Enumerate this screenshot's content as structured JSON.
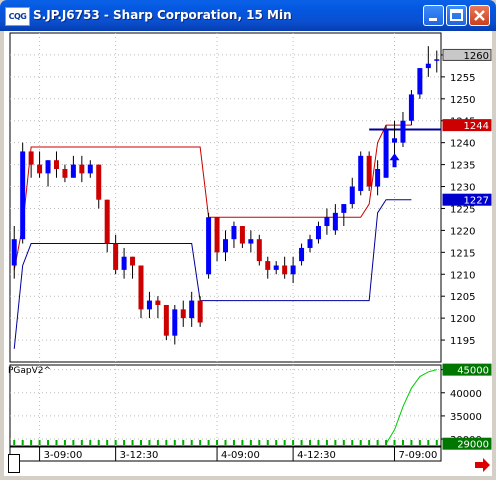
{
  "window": {
    "logo_text": "CQG",
    "title": "S.JP.J6753 - Sharp Corporation, 15 Min"
  },
  "icons": {
    "logo": "cqg-logo-icon",
    "minimize": "minimize-icon",
    "maximize": "maximize-icon",
    "close": "close-icon",
    "scroll_right": "red-right-arrow-icon",
    "buy_signal": "blue-up-arrow-icon"
  },
  "colors": {
    "up_candle": "#0000ff",
    "down_candle": "#cc0000",
    "upper_band": "#cc0000",
    "lower_band": "#000099",
    "indicator_line": "#00cc00",
    "grid": "#bbbbbb"
  },
  "indicator": {
    "label": "PGapV2^"
  },
  "chart_data": [
    {
      "type": "candlestick",
      "title": "S.JP.J6753 - Sharp Corporation, 15 Min",
      "ylim": [
        1190,
        1265
      ],
      "y_ticks": [
        1195,
        1200,
        1205,
        1210,
        1215,
        1220,
        1225,
        1230,
        1235,
        1240,
        1245,
        1250,
        1255,
        1260
      ],
      "x_tick_labels": [
        "3-09:00",
        "3-12:30",
        "4-09:00",
        "4-12:30",
        "7-09:00"
      ],
      "x_tick_bars": [
        3,
        12,
        24,
        33,
        45
      ],
      "price_markers": [
        {
          "value": "1260",
          "level": 1260,
          "style": "gray"
        },
        {
          "value": "1244",
          "level": 1244,
          "style": "red"
        },
        {
          "value": "1227",
          "level": 1227,
          "style": "blue"
        }
      ],
      "candles": [
        [
          1212,
          1221,
          1209,
          1218
        ],
        [
          1218,
          1240,
          1217,
          1238
        ],
        [
          1238,
          1238,
          1232,
          1235
        ],
        [
          1235,
          1238,
          1232,
          1233
        ],
        [
          1233,
          1236,
          1230,
          1236
        ],
        [
          1236,
          1238,
          1232,
          1234
        ],
        [
          1234,
          1235,
          1231,
          1232
        ],
        [
          1232,
          1237,
          1232,
          1235
        ],
        [
          1235,
          1237,
          1231,
          1233
        ],
        [
          1233,
          1236,
          1232,
          1235
        ],
        [
          1235,
          1235,
          1225,
          1227
        ],
        [
          1227,
          1227,
          1215,
          1217
        ],
        [
          1217,
          1219,
          1210,
          1211
        ],
        [
          1211,
          1216,
          1209,
          1214
        ],
        [
          1214,
          1214,
          1209,
          1212
        ],
        [
          1212,
          1212,
          1200,
          1202
        ],
        [
          1202,
          1206,
          1200,
          1204
        ],
        [
          1204,
          1205,
          1200,
          1203
        ],
        [
          1203,
          1203,
          1195,
          1196
        ],
        [
          1196,
          1203,
          1194,
          1202
        ],
        [
          1202,
          1204,
          1198,
          1200
        ],
        [
          1200,
          1206,
          1198,
          1204
        ],
        [
          1204,
          1205,
          1198,
          1199
        ],
        [
          1210,
          1224,
          1209,
          1223
        ],
        [
          1223,
          1223,
          1213,
          1215
        ],
        [
          1215,
          1220,
          1213,
          1218
        ],
        [
          1218,
          1222,
          1216,
          1221
        ],
        [
          1221,
          1221,
          1216,
          1217
        ],
        [
          1217,
          1220,
          1215,
          1218
        ],
        [
          1218,
          1219,
          1212,
          1213
        ],
        [
          1213,
          1214,
          1209,
          1211
        ],
        [
          1211,
          1213,
          1210,
          1212
        ],
        [
          1212,
          1214,
          1209,
          1210
        ],
        [
          1210,
          1214,
          1208,
          1212
        ],
        [
          1213,
          1217,
          1212,
          1216
        ],
        [
          1216,
          1219,
          1215,
          1218
        ],
        [
          1218,
          1222,
          1217,
          1221
        ],
        [
          1221,
          1225,
          1219,
          1223
        ],
        [
          1220,
          1226,
          1219,
          1224
        ],
        [
          1224,
          1226,
          1221,
          1226
        ],
        [
          1226,
          1232,
          1225,
          1230
        ],
        [
          1229,
          1238,
          1228,
          1237
        ],
        [
          1237,
          1238,
          1229,
          1230
        ],
        [
          1230,
          1236,
          1228,
          1234
        ],
        [
          1232,
          1244,
          1232,
          1243
        ],
        [
          1240,
          1245,
          1237,
          1241
        ],
        [
          1240,
          1247,
          1239,
          1245
        ],
        [
          1245,
          1252,
          1244,
          1251
        ],
        [
          1251,
          1257,
          1250,
          1257
        ],
        [
          1257,
          1262,
          1255,
          1258
        ],
        [
          1259,
          1261,
          1256,
          1259
        ]
      ],
      "upper_band": [
        1211,
        1221,
        1239,
        1239,
        1239,
        1239,
        1239,
        1239,
        1239,
        1239,
        1239,
        1239,
        1239,
        1239,
        1239,
        1239,
        1239,
        1239,
        1239,
        1239,
        1239,
        1239,
        1239,
        1223,
        1223,
        1223,
        1223,
        1223,
        1223,
        1223,
        1223,
        1223,
        1223,
        1223,
        1223,
        1223,
        1223,
        1223,
        1223,
        1223,
        1223,
        1223,
        1226,
        1240,
        1244,
        1244,
        1244,
        1244
      ],
      "lower_band": [
        1193,
        1212,
        1217,
        1217,
        1217,
        1217,
        1217,
        1217,
        1217,
        1217,
        1217,
        1217,
        1217,
        1217,
        1217,
        1217,
        1217,
        1217,
        1217,
        1217,
        1217,
        1217,
        1204,
        1204,
        1204,
        1204,
        1204,
        1204,
        1204,
        1204,
        1204,
        1204,
        1204,
        1204,
        1204,
        1204,
        1204,
        1204,
        1204,
        1204,
        1204,
        1204,
        1204,
        1224,
        1227,
        1227,
        1227,
        1227
      ],
      "current_level_line": 1243,
      "signal_arrow_bar": 45,
      "signal_arrow_price": 1236
    },
    {
      "type": "line",
      "label": "PGapV2^",
      "ylim": [
        28500,
        46000
      ],
      "y_ticks": [
        30000,
        35000,
        40000,
        45000
      ],
      "price_markers": [
        {
          "value": "45000",
          "level": 45000,
          "style": "green"
        },
        {
          "value": "29000",
          "level": 29000,
          "style": "green"
        }
      ],
      "series": [
        {
          "x_bars": [
            44,
            45,
            46,
            47,
            48,
            49,
            50
          ],
          "values": [
            29000,
            32000,
            37000,
            41000,
            43500,
            44500,
            45000
          ]
        }
      ]
    }
  ]
}
